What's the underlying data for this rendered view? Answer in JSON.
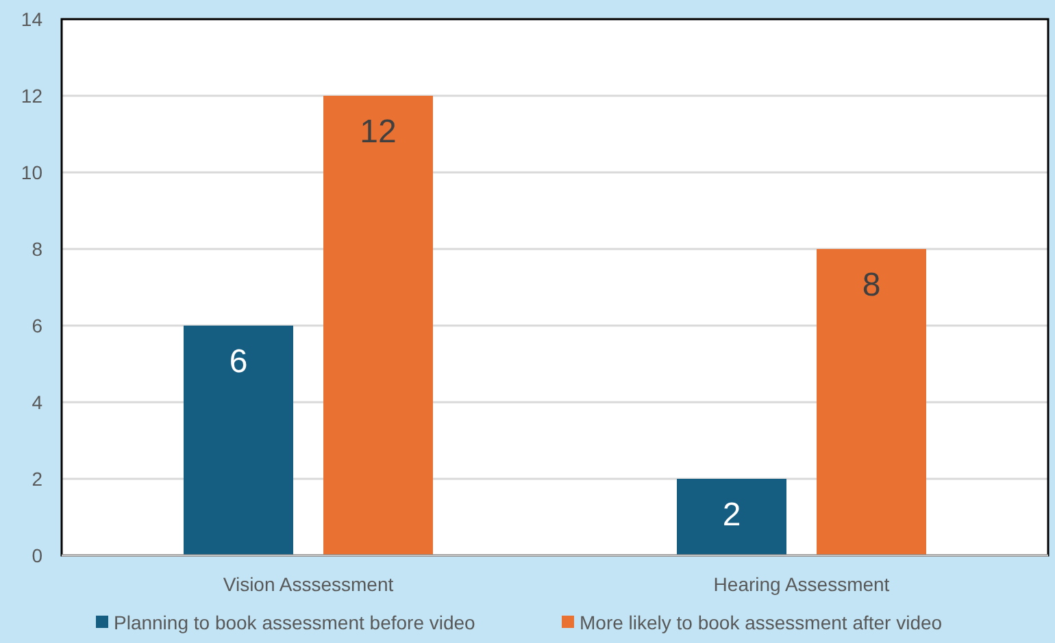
{
  "chart_data": {
    "type": "bar",
    "categories": [
      "Vision Asssessment",
      "Hearing Assessment"
    ],
    "series": [
      {
        "name": "Planning to book assessment before video",
        "color": "#155e82",
        "values": [
          6,
          2
        ]
      },
      {
        "name": "More likely to book assessment after video",
        "color": "#e97132",
        "values": [
          12,
          8
        ]
      }
    ],
    "ylim": [
      0,
      14
    ],
    "yticks": [
      0,
      2,
      4,
      6,
      8,
      10,
      12,
      14
    ],
    "grid": "y",
    "legend": "bottom",
    "data_labels": true
  }
}
